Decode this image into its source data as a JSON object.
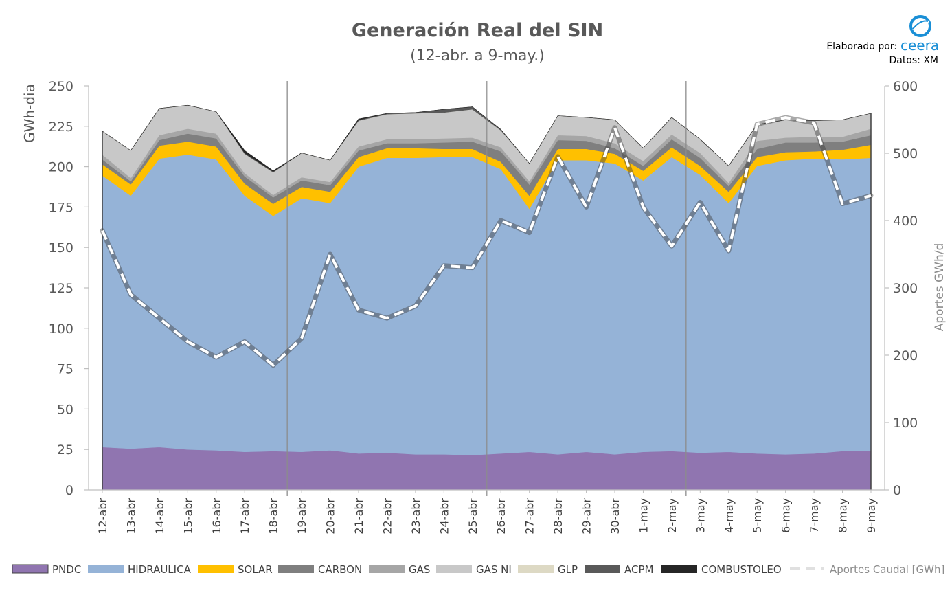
{
  "chart_data": {
    "type": "area",
    "title": "Generación Real del SIN",
    "subtitle": "(12-abr. a 9-may.)",
    "credit": {
      "elaborado_label": "Elaborado por:",
      "logo_text": "ceera",
      "datos": "Datos: XM"
    },
    "ylabel": "GWh-dia",
    "y2label": "Aportes GWh/d",
    "ylim": [
      0,
      250
    ],
    "y2lim": [
      0,
      600
    ],
    "yticks": [
      "0",
      "25",
      "50",
      "75",
      "100",
      "125",
      "150",
      "175",
      "200",
      "225",
      "250"
    ],
    "y2ticks": [
      "0",
      "100",
      "200",
      "300",
      "400",
      "500",
      "600"
    ],
    "categories": [
      "12-abr",
      "13-abr",
      "14-abr",
      "15-abr",
      "16-abr",
      "17-abr",
      "18-abr",
      "19-abr",
      "20-abr",
      "21-abr",
      "22-abr",
      "23-abr",
      "24-abr",
      "25-abr",
      "26-abr",
      "27-abr",
      "28-abr",
      "29-abr",
      "30-abr",
      "1-may",
      "2-may",
      "3-may",
      "4-may",
      "5-may",
      "6-may",
      "7-may",
      "8-may",
      "9-may"
    ],
    "grid": false,
    "legend": "bottom",
    "colors": {
      "PNDC": "#9075b0",
      "HIDRAULICA": "#95b3d7",
      "SOLAR": "#ffc000",
      "CARBON": "#7f7f7f",
      "GAS": "#a6a6a6",
      "GAS NI": "#c8c8c8",
      "GLP": "#ddd9c4",
      "ACPM": "#595959",
      "COMBUSTOLEO": "#262626",
      "Aportes Caudal [GWh]": "#ffffff"
    },
    "series": [
      {
        "name": "PNDC",
        "values": [
          26.5,
          25.5,
          26.5,
          25,
          24.5,
          23.5,
          24,
          23.5,
          24.5,
          22.5,
          23,
          22,
          22,
          21.5,
          22.5,
          23.5,
          22,
          23.5,
          22,
          23.5,
          24,
          23,
          23.5,
          22.5,
          22,
          22.5,
          24,
          24
        ]
      },
      {
        "name": "HIDRAULICA",
        "values": [
          168,
          156.5,
          178.5,
          182.5,
          180,
          158.5,
          145.5,
          157,
          153,
          177.5,
          182.5,
          183.5,
          184,
          184.5,
          176,
          150.5,
          182,
          180.5,
          180,
          168,
          182,
          172,
          154,
          178,
          182,
          182.5,
          180.5,
          181.5
        ]
      },
      {
        "name": "SOLAR",
        "values": [
          7,
          7,
          8,
          8,
          8,
          7.5,
          7.5,
          7,
          7,
          6,
          6,
          6,
          5,
          5,
          4.5,
          8,
          7,
          7,
          6,
          6,
          6,
          5.5,
          7,
          5.5,
          5,
          4.5,
          6,
          8
        ]
      },
      {
        "name": "CARBON",
        "values": [
          3,
          2,
          3.5,
          5,
          5,
          4.5,
          4,
          4,
          4,
          4,
          3,
          3,
          4,
          4.5,
          6.5,
          7,
          5.5,
          5,
          3.5,
          3,
          5,
          5,
          3.5,
          5,
          6,
          5.5,
          5,
          6
        ]
      },
      {
        "name": "GAS",
        "values": [
          3,
          2,
          3,
          3,
          3,
          2,
          1.5,
          2,
          2,
          2.5,
          2.5,
          2.5,
          2.5,
          2.5,
          2.5,
          2,
          3,
          3,
          3,
          3,
          3,
          3,
          2,
          5,
          3,
          3.5,
          3,
          4
        ]
      },
      {
        "name": "GAS NI",
        "values": [
          14.5,
          17,
          16.5,
          14.5,
          13.5,
          12,
          14,
          15,
          13.5,
          16,
          15.5,
          16,
          16,
          17.5,
          10.5,
          11,
          12,
          11.5,
          14.5,
          8,
          10.5,
          8.5,
          10.5,
          10,
          11,
          10,
          10.5,
          9.5
        ]
      },
      {
        "name": "GLP",
        "values": [
          0,
          0,
          0,
          0,
          0,
          0,
          0,
          0,
          0,
          0,
          0,
          0,
          0,
          0,
          0,
          0,
          0,
          0,
          0,
          0,
          0,
          0,
          0,
          0,
          0,
          0,
          0,
          0
        ]
      },
      {
        "name": "ACPM",
        "values": [
          0,
          0,
          0,
          0,
          0,
          0.5,
          0.5,
          0,
          0,
          0.5,
          0.5,
          0.5,
          2,
          1.5,
          0.5,
          0,
          0,
          0,
          0,
          0,
          0,
          0,
          0,
          0,
          0,
          0,
          0,
          0
        ]
      },
      {
        "name": "COMBUSTOLEO",
        "values": [
          0,
          0,
          0,
          0,
          0,
          1.5,
          0.5,
          0,
          0,
          0.5,
          0,
          0,
          0,
          0,
          0,
          0,
          0,
          0,
          0,
          0,
          0,
          0,
          0,
          0,
          0,
          0,
          0,
          0
        ]
      }
    ],
    "line_series": {
      "name": "Aportes Caudal [GWh]",
      "axis": "right",
      "values": [
        385,
        290,
        255,
        220,
        197,
        220,
        185,
        225,
        350,
        267,
        255,
        273,
        333,
        330,
        400,
        382,
        495,
        420,
        538,
        420,
        362,
        427,
        355,
        543,
        553,
        545,
        425,
        437
      ]
    },
    "vertical_markers": [
      "18-abr",
      "25-abr",
      "2-may"
    ]
  }
}
